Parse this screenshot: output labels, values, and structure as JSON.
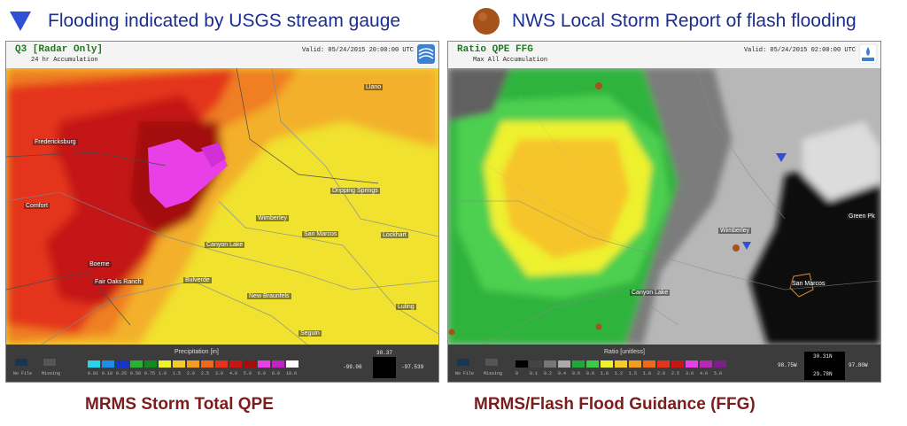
{
  "legend": {
    "gauge_text": "Flooding indicated by USGS stream gauge",
    "lsr_text": "NWS Local Storm Report of flash flooding"
  },
  "colors": {
    "gauge_marker": "#2f4fd6",
    "lsr_marker": "#a5531a",
    "legend_text": "#1a2f8f",
    "caption_text": "#7b1d1d"
  },
  "left_panel": {
    "title": "Q3 [Radar Only]",
    "subtitle": "24 hr Accumulation",
    "valid": "Valid: 05/24/2015 20:00:00 UTC",
    "logo_icon": "noaa-logo",
    "colorbar_title": "Precipitation [in]",
    "colorbar_colors": [
      "#2ad3e8",
      "#1b8fe6",
      "#1534c9",
      "#27b236",
      "#138a1e",
      "#eef12e",
      "#f5cb2a",
      "#f29d1e",
      "#ee6a1a",
      "#e3341b",
      "#c81515",
      "#a60c0c",
      "#e640e6",
      "#c024c0",
      "#ffffff"
    ],
    "colorbar_labels": [
      "0.01",
      "0.10",
      "0.25",
      "0.50",
      "0.75",
      "1.0",
      "1.5",
      "2.0",
      "2.5",
      "3.0",
      "4.0",
      "5.0",
      "6.0",
      "8.0",
      "10.0"
    ],
    "legend_nofile": "No File",
    "legend_missing": "Missing",
    "coord_lon_left": "-99.06",
    "coord_lat_top": "30.37",
    "coord_lon_right": "-97.539",
    "places": [
      "Fredericksburg",
      "Llano",
      "Comfort",
      "Wimberley",
      "Dripping Springs",
      "Canyon Lake",
      "San Marcos",
      "Lockhart",
      "Boerne",
      "Fair Oaks Ranch",
      "Bulverde",
      "New Braunfels",
      "Seguin",
      "Luling"
    ]
  },
  "right_panel": {
    "title": "Ratio QPE FFG",
    "subtitle": "Max All Accumulation",
    "valid": "Valid: 05/24/2015 02:00:00 UTC",
    "logo_icon": "flash-logo",
    "colorbar_title": "Ratio [unitless]",
    "colorbar_colors": [
      "#000000",
      "#444444",
      "#777777",
      "#aaaaaa",
      "#21a63a",
      "#3ec94b",
      "#eef12e",
      "#f6cc2a",
      "#f29d1e",
      "#ee6a1a",
      "#e3341b",
      "#c81515",
      "#e640e6",
      "#b52ab5",
      "#7a1f8a"
    ],
    "colorbar_labels": [
      "0",
      "0.1",
      "0.2",
      "0.4",
      "0.6",
      "0.8",
      "1.0",
      "1.2",
      "1.5",
      "1.8",
      "2.0",
      "2.5",
      "3.0",
      "4.0",
      "5.0"
    ],
    "legend_nofile": "No File",
    "legend_missing": "Missing",
    "coord_lon_left": "98.75W",
    "coord_lat_top": "30.31N",
    "coord_lat_bottom": "29.78N",
    "coord_lon_right": "97.80W",
    "places": [
      "Wimberley",
      "Canyon Lake",
      "San Marcos",
      "Green Pk"
    ]
  },
  "captions": {
    "left": "MRMS Storm Total QPE",
    "right": "MRMS/Flash Flood Guidance (FFG)"
  }
}
